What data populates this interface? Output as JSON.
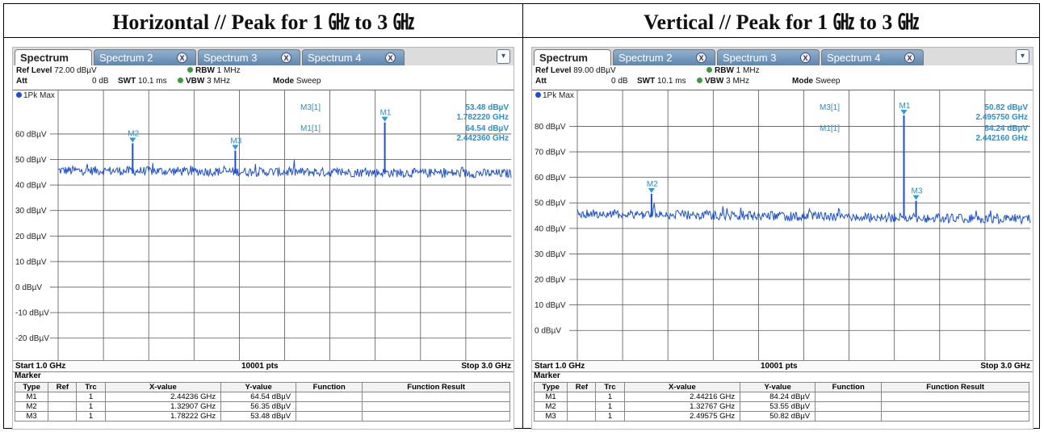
{
  "panels": [
    {
      "title": "Horizontal // Peak for 1 ㎓ to 3 ㎓",
      "tabs": [
        "Spectrum",
        "Spectrum 2",
        "Spectrum 3",
        "Spectrum 4"
      ],
      "ref_level_label": "Ref Level",
      "ref_level": "72.00 dBµV",
      "att_label": "Att",
      "att": "0 dB",
      "swt_label": "SWT",
      "swt": "10.1 ms",
      "rbw_label": "RBW",
      "rbw": "1 MHz",
      "vbw_label": "VBW",
      "vbw": "3 MHz",
      "mode_label": "Mode",
      "mode": "Sweep",
      "trace_label": "1Pk Max",
      "marker_readout": [
        {
          "label": "M3[1]",
          "y": "53.48 dBµV",
          "x": "1.782220 GHz"
        },
        {
          "label": "M1[1]",
          "y": "64.54 dBµV",
          "x": "2.442360 GHz"
        }
      ],
      "start": "Start 1.0 GHz",
      "pts": "10001 pts",
      "stop": "Stop 3.0 GHz",
      "marker_title": "Marker",
      "table_headers": [
        "Type",
        "Ref",
        "Trc",
        "X-value",
        "Y-value",
        "Function",
        "Function Result"
      ],
      "table_rows": [
        [
          "M1",
          "",
          "1",
          "2.44236 GHz",
          "64.54 dBµV",
          "",
          ""
        ],
        [
          "M2",
          "",
          "1",
          "1.32907 GHz",
          "56.35 dBµV",
          "",
          ""
        ],
        [
          "M3",
          "",
          "1",
          "1.78222 GHz",
          "53.48 dBµV",
          "",
          ""
        ]
      ]
    },
    {
      "title": "Vertical // Peak for 1 ㎓ to 3 ㎓",
      "tabs": [
        "Spectrum",
        "Spectrum 2",
        "Spectrum 3",
        "Spectrum 4"
      ],
      "ref_level_label": "Ref Level",
      "ref_level": "89.00 dBµV",
      "att_label": "Att",
      "att": "0 dB",
      "swt_label": "SWT",
      "swt": "10.1 ms",
      "rbw_label": "RBW",
      "rbw": "1 MHz",
      "vbw_label": "VBW",
      "vbw": "3 MHz",
      "mode_label": "Mode",
      "mode": "Sweep",
      "trace_label": "1Pk Max",
      "marker_readout": [
        {
          "label": "M3[1]",
          "y": "50.82 dBµV",
          "x": "2.495750 GHz"
        },
        {
          "label": "M1[1]",
          "y": "84.24 dBµV",
          "x": "2.442160 GHz"
        }
      ],
      "start": "Start 1.0 GHz",
      "pts": "10001 pts",
      "stop": "Stop 3.0 GHz",
      "marker_title": "Marker",
      "table_headers": [
        "Type",
        "Ref",
        "Trc",
        "X-value",
        "Y-value",
        "Function",
        "Function Result"
      ],
      "table_rows": [
        [
          "M1",
          "",
          "1",
          "2.44216 GHz",
          "84.24 dBµV",
          "",
          ""
        ],
        [
          "M2",
          "",
          "1",
          "1.32767 GHz",
          "53.55 dBµV",
          "",
          ""
        ],
        [
          "M3",
          "",
          "1",
          "2.49575 GHz",
          "50.82 dBµV",
          "",
          ""
        ]
      ]
    }
  ],
  "chart_data": [
    {
      "type": "line",
      "xlim": [
        1.0,
        3.0
      ],
      "ylim": [
        -28,
        72
      ],
      "ytick_values": [
        60,
        50,
        40,
        30,
        20,
        10,
        0,
        -10,
        -20
      ],
      "ytick_labels": [
        "60 dBµV",
        "50 dBµV",
        "40 dBµV",
        "30 dBµV",
        "20 dBµV",
        "10 dBµV",
        "0 dBµV",
        "-10 dBµV",
        "-20 dBµV"
      ],
      "noise_floor": 44.5,
      "peaks": [
        {
          "x": 2.44236,
          "y": 64.54
        },
        {
          "x": 1.32907,
          "y": 56.35
        },
        {
          "x": 1.78222,
          "y": 53.48
        }
      ],
      "markers": [
        {
          "name": "M1",
          "x": 2.44236,
          "y": 64.54
        },
        {
          "name": "M2",
          "x": 1.32907,
          "y": 56.35
        },
        {
          "name": "M3",
          "x": 1.78222,
          "y": 53.48
        }
      ],
      "color": "#1a4fd6"
    },
    {
      "type": "line",
      "xlim": [
        1.0,
        3.0
      ],
      "ylim": [
        -11,
        89
      ],
      "ytick_values": [
        80,
        70,
        60,
        50,
        40,
        30,
        20,
        10,
        0
      ],
      "ytick_labels": [
        "80 dBµV",
        "70 dBµV",
        "60 dBµV",
        "50 dBµV",
        "40 dBµV",
        "30 dBµV",
        "20 dBµV",
        "10 dBµV",
        "0 dBµV"
      ],
      "noise_floor": 44.5,
      "peaks": [
        {
          "x": 2.44216,
          "y": 84.24
        },
        {
          "x": 1.32767,
          "y": 53.55
        },
        {
          "x": 2.49575,
          "y": 50.82
        }
      ],
      "markers": [
        {
          "name": "M1",
          "x": 2.44216,
          "y": 84.24
        },
        {
          "name": "M2",
          "x": 1.32767,
          "y": 53.55
        },
        {
          "name": "M3",
          "x": 2.49575,
          "y": 50.82
        }
      ],
      "color": "#1a4fd6"
    }
  ]
}
